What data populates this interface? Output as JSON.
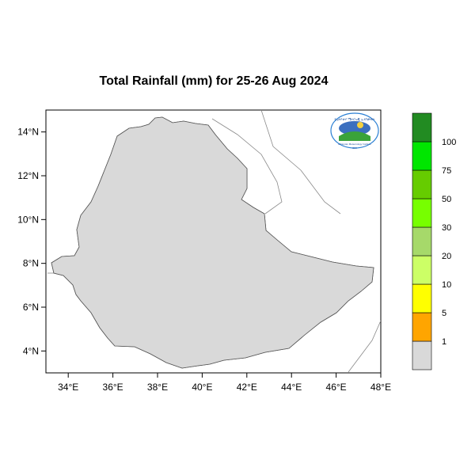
{
  "title": "Total Rainfall (mm) for 25-26 Aug 2024",
  "map": {
    "lon_range": [
      33,
      48
    ],
    "lat_range": [
      3,
      15
    ],
    "x_ticks": [
      "34°E",
      "36°E",
      "38°E",
      "40°E",
      "42°E",
      "44°E",
      "46°E",
      "48°E"
    ],
    "y_ticks": [
      "14°N",
      "12°N",
      "10°N",
      "8°N",
      "6°N",
      "4°N"
    ],
    "country_fill": "#d9d9d9",
    "logo_icon": "ethiopian-meteorology-institute-logo",
    "logo_text": [
      "የኢትዮጵያ ሜትሮሎጂ ኢንስቲትዩት",
      "Ethiopian Meteorology Institute",
      "EMI"
    ]
  },
  "colorbar": {
    "labels": [
      "1",
      "5",
      "10",
      "20",
      "30",
      "50",
      "75",
      "100"
    ],
    "colors": [
      "#d9d9d9",
      "#ffa500",
      "#ffff00",
      "#ccff66",
      "#a6d96a",
      "#77ff00",
      "#66cc00",
      "#00e600",
      "#228b22"
    ]
  }
}
